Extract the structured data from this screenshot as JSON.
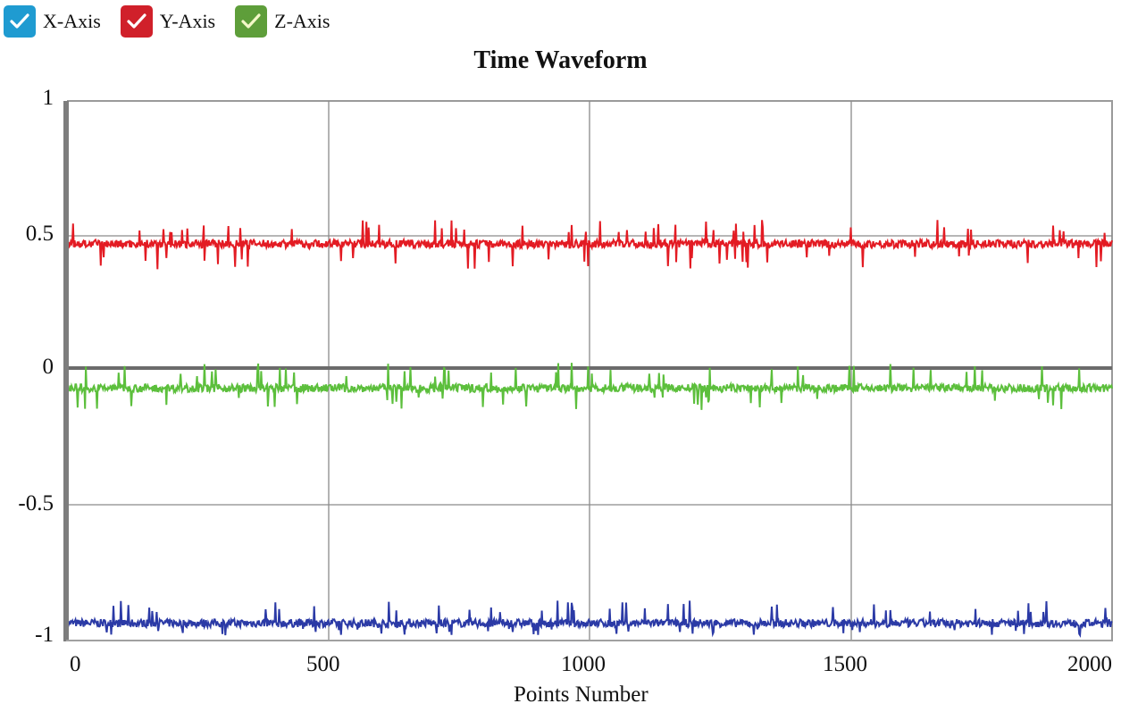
{
  "legend": {
    "items": [
      {
        "label": "X-Axis",
        "color": "#1f9bd1",
        "checked": true
      },
      {
        "label": "Y-Axis",
        "color": "#d0202a",
        "checked": true
      },
      {
        "label": "Z-Axis",
        "color": "#5e9e3a",
        "checked": true
      }
    ]
  },
  "chart_data": {
    "type": "line",
    "title": "Time Waveform",
    "xlabel": "Points Number",
    "ylabel": "",
    "xlim": [
      0,
      2000
    ],
    "ylim": [
      -1.02,
      1
    ],
    "grid": true,
    "legend_position": "top-left",
    "x_ticks": [
      "0",
      "500",
      "1000",
      "1500",
      "2000"
    ],
    "y_ticks": [
      "1",
      "0.5",
      "0",
      "-0.5",
      "-1"
    ],
    "series": [
      {
        "name": "X-Axis",
        "color": "#2b3aa6",
        "mean": -0.955,
        "noise_range": [
          -1.0,
          -0.87
        ],
        "points": 2048
      },
      {
        "name": "Y-Axis",
        "color": "#e31b23",
        "mean": 0.465,
        "noise_range": [
          0.37,
          0.555
        ],
        "points": 2048
      },
      {
        "name": "Z-Axis",
        "color": "#5cbf3c",
        "mean": -0.075,
        "noise_range": [
          -0.16,
          0.02
        ],
        "points": 2048
      }
    ]
  }
}
